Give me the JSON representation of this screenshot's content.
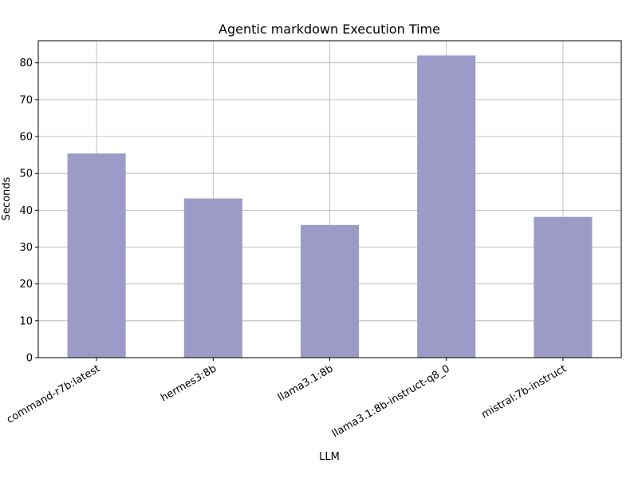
{
  "chart_data": {
    "type": "bar",
    "title": "Agentic markdown Execution Time",
    "xlabel": "LLM",
    "ylabel": "Seconds",
    "categories": [
      "command-r7b:latest",
      "hermes3:8b",
      "llama3.1:8b",
      "llama3.1:8b-instruct-q8_0",
      "mistral:7b-instruct"
    ],
    "values": [
      55.4,
      43.2,
      36.0,
      82.0,
      38.2
    ],
    "ylim": [
      0,
      86
    ],
    "yticks": [
      0,
      10,
      20,
      30,
      40,
      50,
      60,
      70,
      80
    ],
    "grid": true,
    "bar_color": "#9e9ac8",
    "grid_color": "#b0b0b0"
  }
}
